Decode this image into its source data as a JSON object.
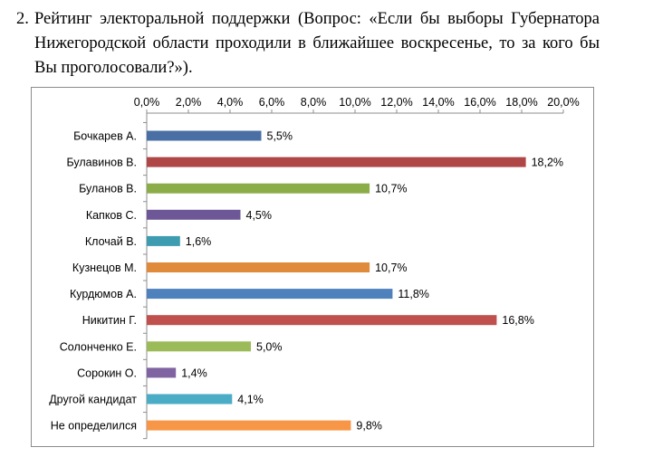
{
  "question": {
    "number": "2.",
    "text": "Рейтинг электоральной поддержки (Вопрос: «Если бы выборы Губернатора Нижегородской области проходили в ближайшее воскресенье, то за кого бы Вы проголосовали?»)."
  },
  "chart_data": {
    "type": "bar",
    "orientation": "horizontal",
    "categories": [
      "Бочкарев А.",
      "Булавинов В.",
      "Буланов В.",
      "Капков С.",
      "Клочай В.",
      "Кузнецов М.",
      "Курдюмов А.",
      "Никитин Г.",
      "Солонченко Е.",
      "Сорокин О.",
      "Другой кандидат",
      "Не определился"
    ],
    "values": [
      5.5,
      18.2,
      10.7,
      4.5,
      1.6,
      10.7,
      11.8,
      16.8,
      5.0,
      1.4,
      4.1,
      9.8
    ],
    "value_labels": [
      "5,5%",
      "18,2%",
      "10,7%",
      "4,5%",
      "1,6%",
      "10,7%",
      "11,8%",
      "16,8%",
      "5,0%",
      "1,4%",
      "4,1%",
      "9,8%"
    ],
    "colors": [
      "#4a6fa5",
      "#b04747",
      "#8aad4a",
      "#6e5796",
      "#3d9cb0",
      "#e08a3c",
      "#4f81bd",
      "#c0504d",
      "#9bbb59",
      "#8064a2",
      "#4bacc6",
      "#f79646"
    ],
    "xlim": [
      0,
      20
    ],
    "x_ticks": [
      0,
      2,
      4,
      6,
      8,
      10,
      12,
      14,
      16,
      18,
      20
    ],
    "x_tick_labels": [
      "0,0%",
      "2,0%",
      "4,0%",
      "6,0%",
      "8,0%",
      "10,0%",
      "12,0%",
      "14,0%",
      "16,0%",
      "18,0%",
      "20,0%"
    ],
    "x_axis_position": "top",
    "grid": false,
    "legend": "none",
    "title": "",
    "xlabel": "",
    "ylabel": ""
  }
}
